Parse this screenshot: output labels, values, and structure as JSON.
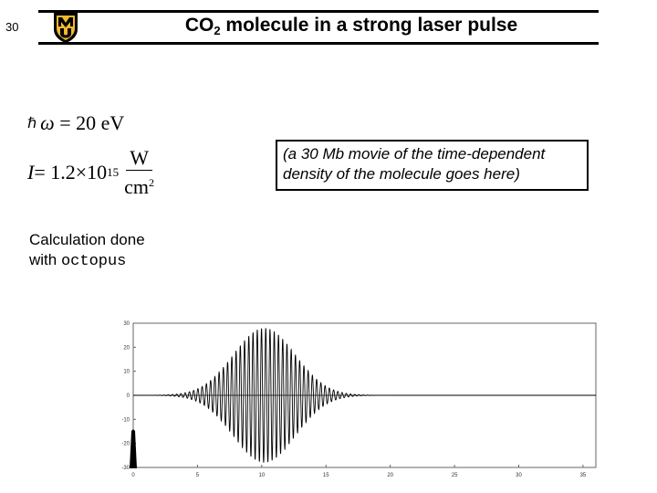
{
  "slide": {
    "number": "30",
    "title_prefix": "CO",
    "title_subscript": "2",
    "title_suffix": " molecule in a strong laser pulse",
    "logo_letters": "MU"
  },
  "formulas": {
    "omega_glyph": "ℏ",
    "omega_symbol": "ω",
    "omega_value": "= 20 eV",
    "intensity_symbol": "I",
    "intensity_mantissa": "= 1.2×10",
    "intensity_exponent": "15",
    "unit_numerator": "W",
    "unit_denominator": "cm",
    "unit_denominator_exponent": "2"
  },
  "movie_placeholder": "(a 30 Mb movie of the time-dependent density of the molecule goes here)",
  "calculation_note": {
    "line1": "Calculation done",
    "line2_prefix": "with ",
    "code": "octopus"
  },
  "chart_data": {
    "type": "line",
    "title": "",
    "xlabel": "",
    "ylabel": "",
    "xlim": [
      0,
      36
    ],
    "ylim": [
      -30,
      30
    ],
    "x_ticks": [
      "0",
      "5",
      "10",
      "15",
      "20",
      "25",
      "30",
      "35"
    ],
    "y_ticks": [
      "30",
      "20",
      "10",
      "0",
      "-10",
      "-20",
      "-30"
    ],
    "series": [
      {
        "envelope_center": 10.2,
        "envelope_width": 3.4,
        "peak_amplitude": 28,
        "period": 0.33,
        "color": "#000000"
      }
    ],
    "grid": false
  }
}
